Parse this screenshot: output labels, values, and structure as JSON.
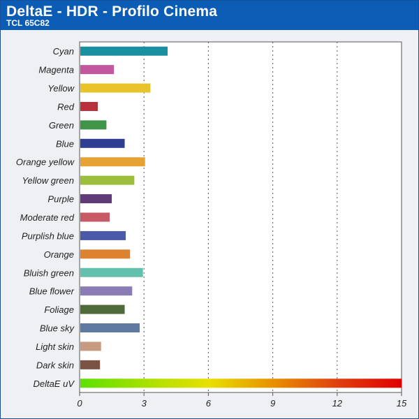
{
  "header": {
    "title": "DeltaE - HDR - Profilo Cinema",
    "subtitle": "TCL 65C82"
  },
  "chart_data": {
    "type": "bar",
    "orientation": "horizontal",
    "title": "DeltaE - HDR - Profilo Cinema",
    "subtitle": "TCL 65C82",
    "xlabel": "",
    "ylabel": "",
    "xlim": [
      0,
      15
    ],
    "xticks": [
      0,
      3,
      6,
      9,
      12,
      15
    ],
    "grid": "vertical-dotted",
    "legend": "none",
    "categories": [
      "Cyan",
      "Magenta",
      "Yellow",
      "Red",
      "Green",
      "Blue",
      "Orange yellow",
      "Yellow green",
      "Purple",
      "Moderate red",
      "Purplish blue",
      "Orange",
      "Bluish green",
      "Blue flower",
      "Foliage",
      "Blue sky",
      "Light skin",
      "Dark skin",
      "DeltaE uV"
    ],
    "values": [
      4.1,
      1.6,
      3.3,
      0.85,
      1.25,
      2.1,
      3.05,
      2.55,
      1.5,
      1.4,
      2.15,
      2.35,
      2.95,
      2.45,
      2.1,
      2.8,
      1.0,
      0.95,
      15
    ],
    "colors": [
      "#1a8fa0",
      "#c2579d",
      "#e8c42a",
      "#b8323c",
      "#3f9447",
      "#2f3e93",
      "#e6a233",
      "#9bbf3c",
      "#5f3c78",
      "#c75a64",
      "#4b5aa8",
      "#dd8330",
      "#63c0ac",
      "#8a7db6",
      "#4f6b3a",
      "#5f7aa0",
      "#c99a82",
      "#7a5344",
      "gradient"
    ]
  }
}
